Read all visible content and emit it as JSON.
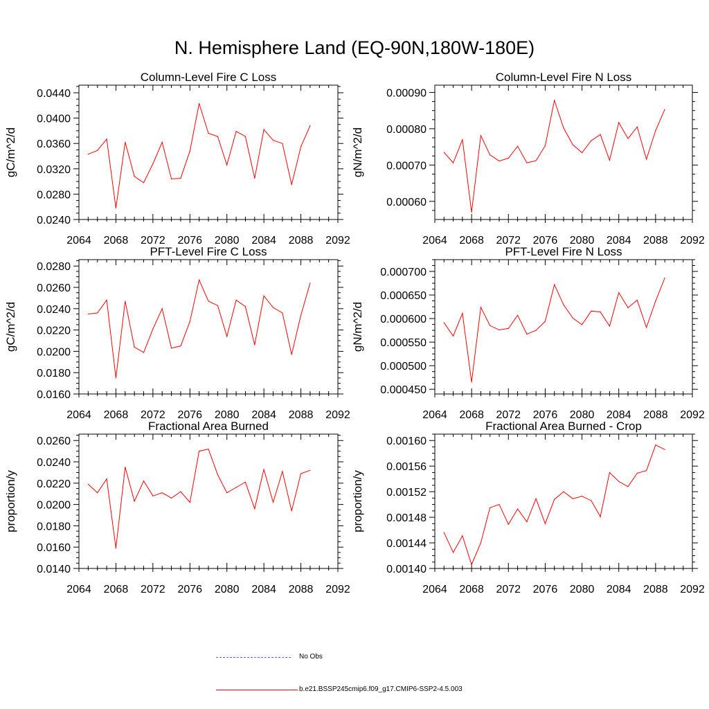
{
  "title": "N. Hemisphere Land (EQ-90N,180W-180E)",
  "series_color": "#ff0000",
  "obs_color": "#6666cc",
  "legend": {
    "obs_label": "No Obs",
    "model_label": "b.e21.BSSP245cmip6.f09_g17.CMIP6-SSP2-4.5.003"
  },
  "chart_data": [
    {
      "type": "line",
      "title": "Column-Level Fire C Loss",
      "ylabel": "gC/m^2/d",
      "xlim": [
        2064,
        2092
      ],
      "ylim": [
        0.024,
        0.0452
      ],
      "xticks": [
        2064,
        2068,
        2072,
        2076,
        2080,
        2084,
        2088,
        2092
      ],
      "yticks": [
        0.024,
        0.028,
        0.032,
        0.036,
        0.04,
        0.044
      ],
      "ytick_labels": [
        "0.0240",
        "0.0280",
        "0.0320",
        "0.0360",
        "0.0400",
        "0.0440"
      ],
      "x": [
        2065,
        2066,
        2067,
        2068,
        2069,
        2070,
        2071,
        2072,
        2073,
        2074,
        2075,
        2076,
        2077,
        2078,
        2079,
        2080,
        2081,
        2082,
        2083,
        2084,
        2085,
        2086,
        2087,
        2088,
        2089
      ],
      "y": [
        0.0343,
        0.0349,
        0.0367,
        0.0258,
        0.0362,
        0.0308,
        0.0298,
        0.0328,
        0.0362,
        0.0304,
        0.0305,
        0.0348,
        0.0423,
        0.0376,
        0.0371,
        0.0326,
        0.0379,
        0.0371,
        0.0305,
        0.0382,
        0.0365,
        0.036,
        0.0295,
        0.0355,
        0.0388
      ]
    },
    {
      "type": "line",
      "title": "Column-Level Fire N Loss",
      "ylabel": "gN/m^2/d",
      "xlim": [
        2064,
        2092
      ],
      "ylim": [
        0.00055,
        0.00092
      ],
      "xticks": [
        2064,
        2068,
        2072,
        2076,
        2080,
        2084,
        2088,
        2092
      ],
      "yticks": [
        0.0006,
        0.0007,
        0.0008,
        0.0009
      ],
      "ytick_labels": [
        "0.00060",
        "0.00070",
        "0.00080",
        "0.00090"
      ],
      "x": [
        2065,
        2066,
        2067,
        2068,
        2069,
        2070,
        2071,
        2072,
        2073,
        2074,
        2075,
        2076,
        2077,
        2078,
        2079,
        2080,
        2081,
        2082,
        2083,
        2084,
        2085,
        2086,
        2087,
        2088,
        2089
      ],
      "y": [
        0.000735,
        0.000706,
        0.00077,
        0.00057,
        0.000781,
        0.000728,
        0.000711,
        0.000719,
        0.000752,
        0.000706,
        0.000712,
        0.000753,
        0.000878,
        0.000802,
        0.000756,
        0.000734,
        0.000767,
        0.000784,
        0.000713,
        0.000817,
        0.000773,
        0.000805,
        0.000716,
        0.000795,
        0.000853
      ]
    },
    {
      "type": "line",
      "title": "PFT-Level Fire C Loss",
      "ylabel": "gC/m^2/d",
      "xlim": [
        2064,
        2092
      ],
      "ylim": [
        0.016,
        0.0286
      ],
      "xticks": [
        2064,
        2068,
        2072,
        2076,
        2080,
        2084,
        2088,
        2092
      ],
      "yticks": [
        0.016,
        0.018,
        0.02,
        0.022,
        0.024,
        0.026,
        0.028
      ],
      "ytick_labels": [
        "0.0160",
        "0.0180",
        "0.0200",
        "0.0220",
        "0.0240",
        "0.0260",
        "0.0280"
      ],
      "x": [
        2065,
        2066,
        2067,
        2068,
        2069,
        2070,
        2071,
        2072,
        2073,
        2074,
        2075,
        2076,
        2077,
        2078,
        2079,
        2080,
        2081,
        2082,
        2083,
        2084,
        2085,
        2086,
        2087,
        2088,
        2089
      ],
      "y": [
        0.0235,
        0.0236,
        0.0248,
        0.0175,
        0.0247,
        0.0204,
        0.0199,
        0.0221,
        0.024,
        0.0203,
        0.0205,
        0.0228,
        0.0267,
        0.0247,
        0.0243,
        0.0214,
        0.0248,
        0.0242,
        0.0206,
        0.0252,
        0.0241,
        0.0236,
        0.0197,
        0.0234,
        0.0264
      ]
    },
    {
      "type": "line",
      "title": "PFT-Level Fire N Loss",
      "ylabel": "gN/m^2/d",
      "xlim": [
        2064,
        2092
      ],
      "ylim": [
        0.00044,
        0.000725
      ],
      "xticks": [
        2064,
        2068,
        2072,
        2076,
        2080,
        2084,
        2088,
        2092
      ],
      "yticks": [
        0.00045,
        0.0005,
        0.00055,
        0.0006,
        0.00065,
        0.0007
      ],
      "ytick_labels": [
        "0.000450",
        "0.000500",
        "0.000550",
        "0.000600",
        "0.000650",
        "0.000700"
      ],
      "x": [
        2065,
        2066,
        2067,
        2068,
        2069,
        2070,
        2071,
        2072,
        2073,
        2074,
        2075,
        2076,
        2077,
        2078,
        2079,
        2080,
        2081,
        2082,
        2083,
        2084,
        2085,
        2086,
        2087,
        2088,
        2089
      ],
      "y": [
        0.000591,
        0.000563,
        0.000611,
        0.000465,
        0.000624,
        0.000585,
        0.000576,
        0.000579,
        0.000607,
        0.000567,
        0.000575,
        0.000594,
        0.000672,
        0.000629,
        0.000601,
        0.000587,
        0.000616,
        0.000614,
        0.000584,
        0.000655,
        0.000623,
        0.000639,
        0.000581,
        0.000637,
        0.000686
      ]
    },
    {
      "type": "line",
      "title": "Fractional Area Burned",
      "ylabel": "proportion/y",
      "xlim": [
        2064,
        2092
      ],
      "ylim": [
        0.014,
        0.0266
      ],
      "xticks": [
        2064,
        2068,
        2072,
        2076,
        2080,
        2084,
        2088,
        2092
      ],
      "yticks": [
        0.014,
        0.016,
        0.018,
        0.02,
        0.022,
        0.024,
        0.026
      ],
      "ytick_labels": [
        "0.0140",
        "0.0160",
        "0.0180",
        "0.0200",
        "0.0220",
        "0.0240",
        "0.0260"
      ],
      "x": [
        2065,
        2066,
        2067,
        2068,
        2069,
        2070,
        2071,
        2072,
        2073,
        2074,
        2075,
        2076,
        2077,
        2078,
        2079,
        2080,
        2081,
        2082,
        2083,
        2084,
        2085,
        2086,
        2087,
        2088,
        2089
      ],
      "y": [
        0.0219,
        0.0211,
        0.0224,
        0.0159,
        0.0235,
        0.0203,
        0.0222,
        0.0208,
        0.0211,
        0.0206,
        0.0212,
        0.0202,
        0.025,
        0.0252,
        0.0228,
        0.0211,
        0.0216,
        0.0221,
        0.0196,
        0.0233,
        0.0202,
        0.0231,
        0.0194,
        0.0229,
        0.0232
      ]
    },
    {
      "type": "line",
      "title": "Fractional Area Burned - Crop",
      "ylabel": "proportion/y",
      "xlim": [
        2064,
        2092
      ],
      "ylim": [
        0.0014,
        0.00161
      ],
      "xticks": [
        2064,
        2068,
        2072,
        2076,
        2080,
        2084,
        2088,
        2092
      ],
      "yticks": [
        0.0014,
        0.00144,
        0.00148,
        0.00152,
        0.00156,
        0.0016
      ],
      "ytick_labels": [
        "0.00140",
        "0.00144",
        "0.00148",
        "0.00152",
        "0.00156",
        "0.00160"
      ],
      "x": [
        2065,
        2066,
        2067,
        2068,
        2069,
        2070,
        2071,
        2072,
        2073,
        2074,
        2075,
        2076,
        2077,
        2078,
        2079,
        2080,
        2081,
        2082,
        2083,
        2084,
        2085,
        2086,
        2087,
        2088,
        2089
      ],
      "y": [
        0.001456,
        0.001425,
        0.001451,
        0.001406,
        0.00144,
        0.001495,
        0.0015,
        0.001469,
        0.001493,
        0.001473,
        0.001509,
        0.00147,
        0.001508,
        0.00152,
        0.001509,
        0.001513,
        0.001506,
        0.001481,
        0.00155,
        0.001536,
        0.001528,
        0.001549,
        0.001553,
        0.001593,
        0.001586
      ]
    }
  ]
}
